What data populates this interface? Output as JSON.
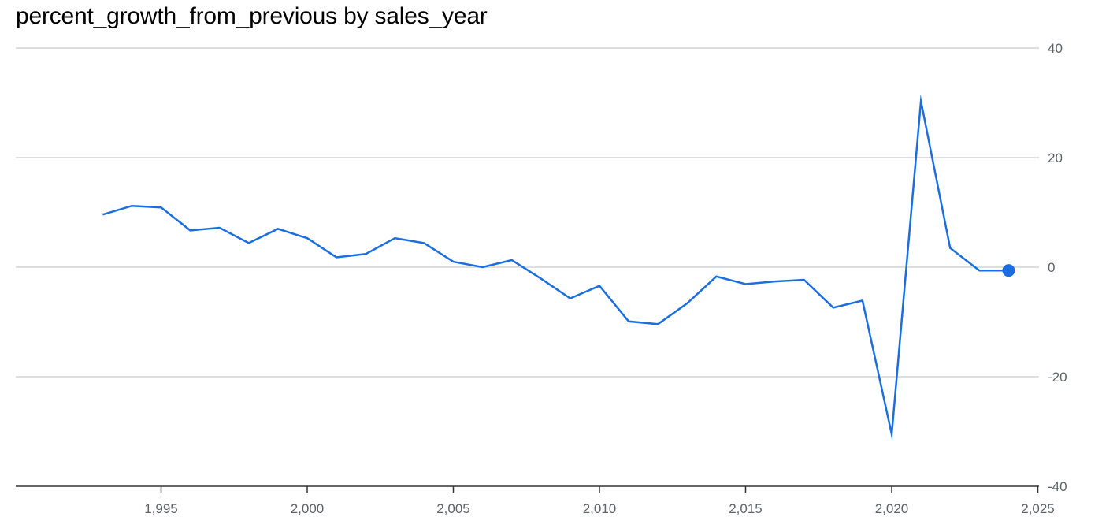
{
  "colors": {
    "series": "#1a6ee0",
    "grid": "#d3d3d3",
    "axis": "#333333",
    "tick_text": "#5f6368"
  },
  "chart_data": {
    "type": "line",
    "title": "percent_growth_from_previous by sales_year",
    "xlabel": "",
    "ylabel": "",
    "xlim": [
      1990,
      2025
    ],
    "ylim": [
      -40,
      40
    ],
    "x_ticks": [
      {
        "value": 1995,
        "label": "1,995"
      },
      {
        "value": 2000,
        "label": "2,000"
      },
      {
        "value": 2005,
        "label": "2,005"
      },
      {
        "value": 2010,
        "label": "2,010"
      },
      {
        "value": 2015,
        "label": "2,015"
      },
      {
        "value": 2020,
        "label": "2,020"
      },
      {
        "value": 2025,
        "label": "2,025"
      }
    ],
    "y_ticks": [
      {
        "value": 40,
        "label": "40"
      },
      {
        "value": 20,
        "label": "20"
      },
      {
        "value": 0,
        "label": "0"
      },
      {
        "value": -20,
        "label": "-20"
      },
      {
        "value": -40,
        "label": "-40"
      }
    ],
    "grid": true,
    "y_axis_position": "right",
    "highlighted_point_index": 31,
    "series": [
      {
        "x": [
          1993,
          1994,
          1995,
          1996,
          1997,
          1998,
          1999,
          2000,
          2001,
          2002,
          2003,
          2004,
          2005,
          2006,
          2007,
          2008,
          2009,
          2010,
          2011,
          2012,
          2013,
          2014,
          2015,
          2016,
          2017,
          2018,
          2019,
          2020,
          2021,
          2022,
          2023,
          2024
        ],
        "y": [
          9.6,
          11.2,
          10.9,
          6.7,
          7.2,
          4.4,
          7.0,
          5.3,
          1.8,
          2.4,
          5.3,
          4.4,
          1.0,
          0.0,
          1.3,
          -2.1,
          -5.7,
          -3.4,
          -9.9,
          -10.4,
          -6.6,
          -1.7,
          -3.1,
          -2.6,
          -2.3,
          -7.4,
          -6.1,
          -30.5,
          30.3,
          3.5,
          -0.6,
          -0.6
        ]
      }
    ]
  }
}
